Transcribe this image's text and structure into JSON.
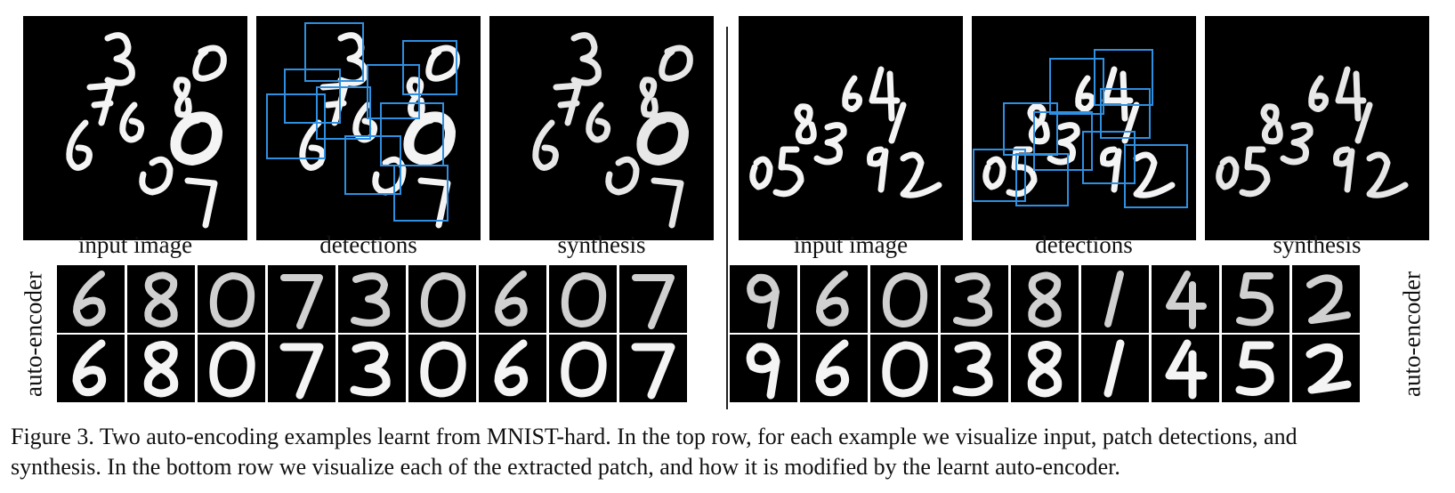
{
  "labels": {
    "left_input": "input image",
    "left_detections": "detections",
    "left_synthesis": "synthesis",
    "right_input": "input image",
    "right_detections": "detections",
    "right_synthesis": "synthesis",
    "left_autoencoder": "auto-encoder",
    "right_autoencoder": "auto-encoder"
  },
  "left_example": {
    "digits": [
      "3",
      "0",
      "7",
      "6",
      "8",
      "6",
      "0",
      "0",
      "7"
    ],
    "patch_digits": [
      "6",
      "8",
      "0",
      "7",
      "3",
      "0",
      "6",
      "0",
      "7"
    ]
  },
  "right_example": {
    "digits": [
      "6",
      "4",
      "8",
      "3",
      "1",
      "0",
      "5",
      "9",
      "2"
    ],
    "patch_digits": [
      "9",
      "6",
      "0",
      "3",
      "8",
      "1",
      "4",
      "5",
      "2"
    ]
  },
  "caption": {
    "line1": "Figure 3.  Two auto-encoding examples learnt from MNIST-hard. In the top row, for each example we visualize input, patch detections, and",
    "line2": "synthesis. In the bottom row we visualize each of the extracted patch, and how it is modified by the learnt auto-encoder."
  },
  "colors": {
    "detection_box": "#2f8fe0",
    "background": "#000000",
    "stroke": "#f4f4f4"
  }
}
